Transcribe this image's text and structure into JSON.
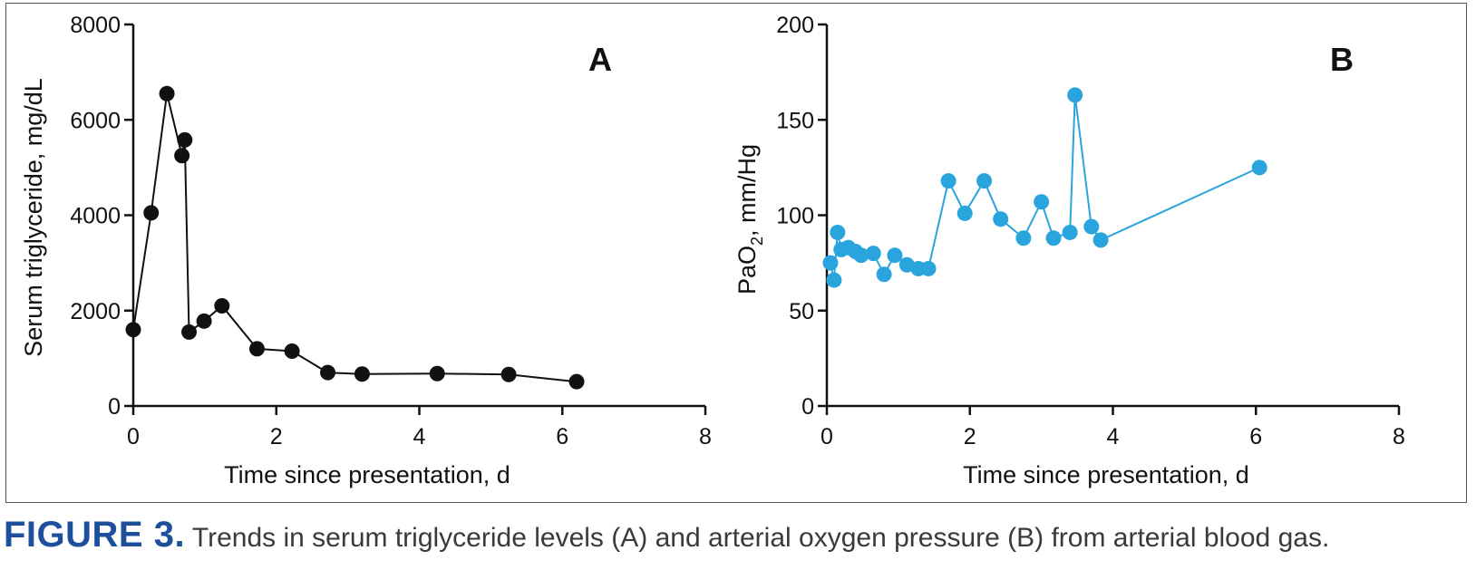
{
  "chart_data": [
    {
      "type": "line",
      "panel_label": "A",
      "xlabel": "Time since presentation, d",
      "ylabel": "Serum triglyceride, mg/dL",
      "xlim": [
        0,
        8
      ],
      "ylim": [
        0,
        8000
      ],
      "xticks": [
        0,
        2,
        4,
        6,
        8
      ],
      "yticks": [
        0,
        2000,
        4000,
        6000,
        8000
      ],
      "color": "#111111",
      "grid": false,
      "series": [
        {
          "x": [
            0,
            0.25,
            0.47,
            0.68,
            0.72,
            0.78,
            0.99,
            1.24,
            1.73,
            2.22,
            2.72,
            3.2,
            4.25,
            5.25,
            6.2
          ],
          "y": [
            1600,
            4050,
            6550,
            5250,
            5580,
            1550,
            1780,
            2100,
            1200,
            1150,
            700,
            670,
            680,
            660,
            510
          ]
        }
      ]
    },
    {
      "type": "line",
      "panel_label": "B",
      "xlabel": "Time since presentation, d",
      "ylabel_main": "PaO",
      "ylabel_sub": "2",
      "ylabel_rest": ", mm/Hg",
      "xlim": [
        0,
        8
      ],
      "ylim": [
        0,
        200
      ],
      "xticks": [
        0,
        2,
        4,
        6,
        8
      ],
      "yticks": [
        0,
        50,
        100,
        150,
        200
      ],
      "color": "#2aa4dc",
      "grid": false,
      "series": [
        {
          "x": [
            0.05,
            0.1,
            0.15,
            0.2,
            0.3,
            0.4,
            0.48,
            0.65,
            0.8,
            0.95,
            1.12,
            1.28,
            1.42,
            1.7,
            1.93,
            2.2,
            2.43,
            2.75,
            3.0,
            3.17,
            3.4,
            3.47,
            3.7,
            3.83,
            6.05
          ],
          "y": [
            75,
            66,
            91,
            82,
            83,
            81,
            79,
            80,
            69,
            79,
            74,
            72,
            72,
            118,
            101,
            118,
            98,
            88,
            107,
            88,
            91,
            163,
            94,
            87,
            125
          ]
        }
      ]
    }
  ],
  "caption": {
    "label": "FIGURE 3.",
    "text": " Trends in serum triglyceride levels (A) and arterial oxygen pressure (B) from arterial blood gas."
  }
}
